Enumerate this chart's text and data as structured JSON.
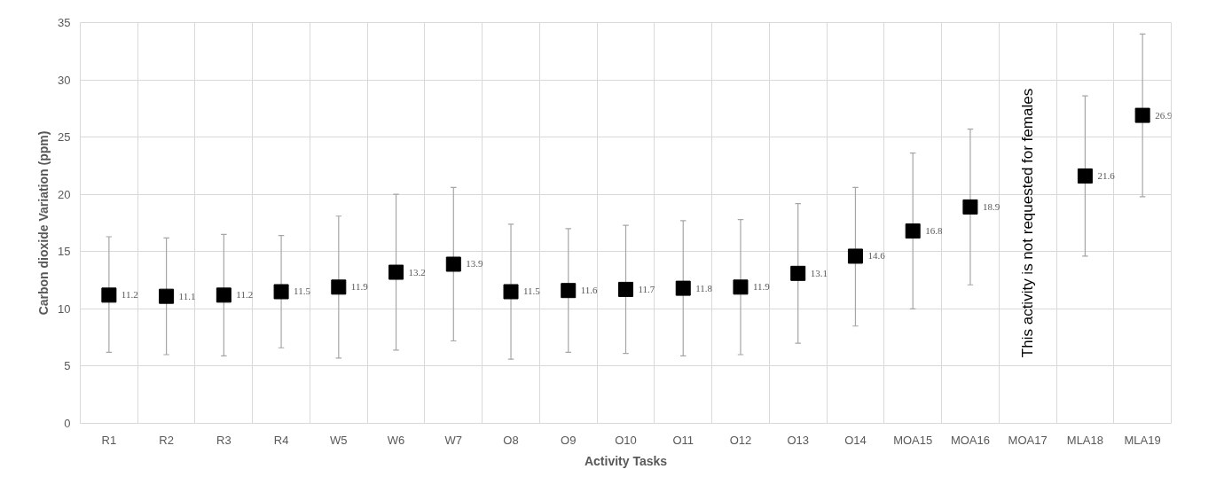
{
  "chart_data": {
    "type": "scatter",
    "xlabel": "Activity Tasks",
    "ylabel": "Carbon dioxide Variation (ppm)",
    "categories": [
      "R1",
      "R2",
      "R3",
      "R4",
      "W5",
      "W6",
      "W7",
      "O8",
      "O9",
      "O10",
      "O11",
      "O12",
      "O13",
      "O14",
      "MOA15",
      "MOA16",
      "MOA17",
      "MLA18",
      "MLA19"
    ],
    "values": [
      11.2,
      11.1,
      11.2,
      11.5,
      11.9,
      13.2,
      13.9,
      11.5,
      11.6,
      11.7,
      11.8,
      11.9,
      13.1,
      14.6,
      16.8,
      18.9,
      null,
      21.6,
      26.9
    ],
    "errors": [
      [
        6.2,
        16.3
      ],
      [
        6.0,
        16.2
      ],
      [
        5.9,
        16.5
      ],
      [
        6.6,
        16.4
      ],
      [
        5.7,
        18.1
      ],
      [
        6.4,
        20.0
      ],
      [
        7.2,
        20.6
      ],
      [
        5.6,
        17.4
      ],
      [
        6.2,
        17.0
      ],
      [
        6.1,
        17.3
      ],
      [
        5.9,
        17.7
      ],
      [
        6.0,
        17.8
      ],
      [
        7.0,
        19.2
      ],
      [
        8.5,
        20.6
      ],
      [
        10.0,
        23.6
      ],
      [
        12.1,
        25.7
      ],
      null,
      [
        14.6,
        28.6
      ],
      [
        19.8,
        34.0
      ]
    ],
    "color": "#000000",
    "marker": "square",
    "data_labels": true,
    "ylim": [
      0,
      35
    ],
    "yticks": [
      0,
      5,
      10,
      15,
      20,
      25,
      30,
      35
    ],
    "grid": true,
    "annotations": [
      "This activity is not requested for females"
    ]
  }
}
